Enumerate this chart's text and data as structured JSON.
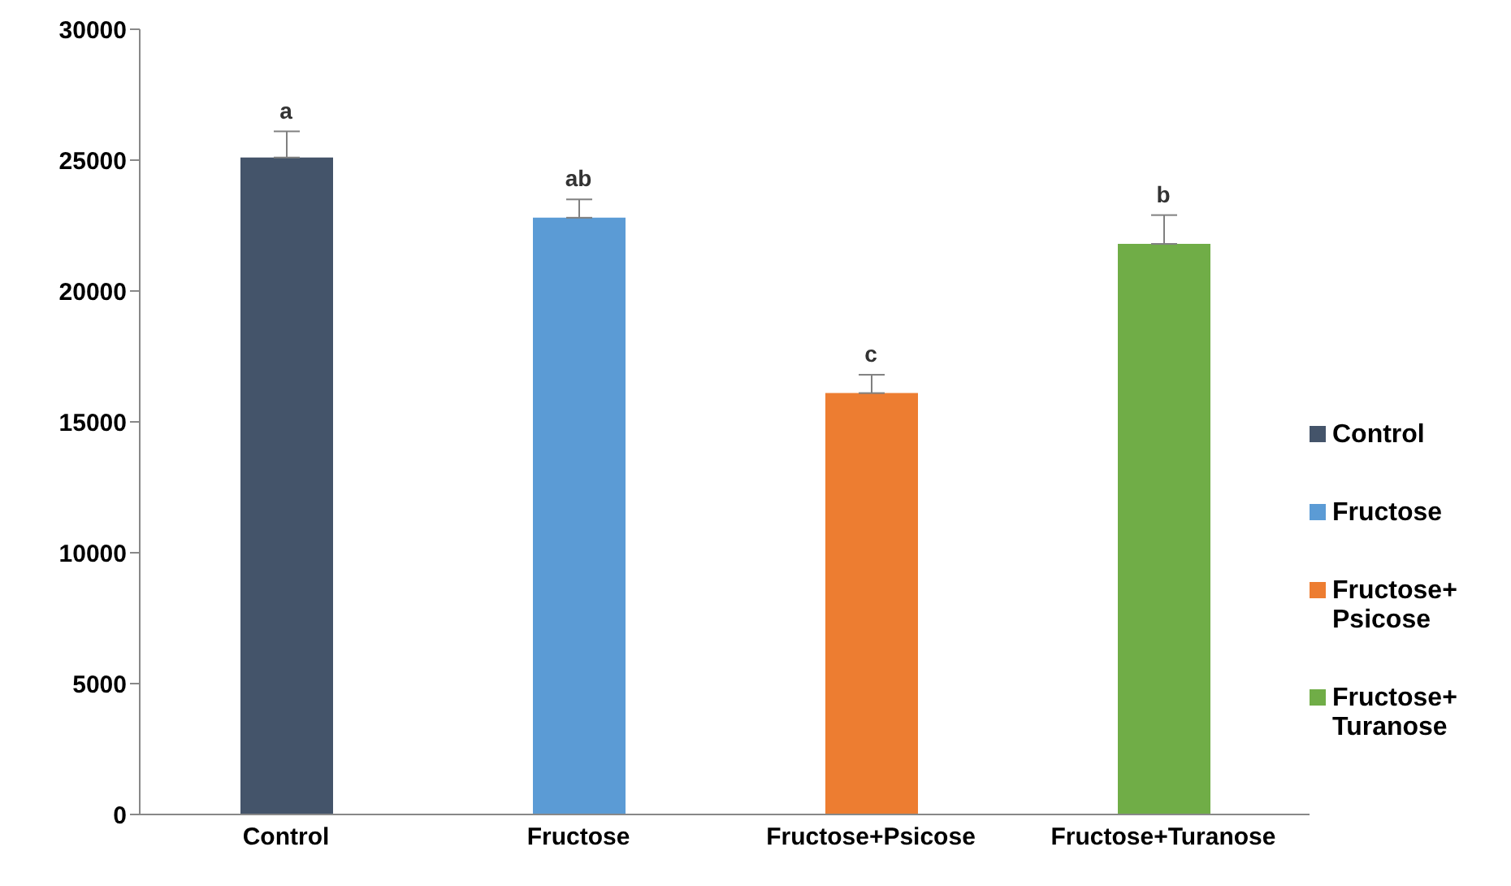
{
  "chart_data": {
    "type": "bar",
    "categories": [
      "Control",
      "Fructose",
      "Fructose+Psicose",
      "Fructose+Turanose"
    ],
    "stacked": true,
    "series": [
      {
        "name": "Control",
        "color": "#44546a",
        "values": [
          25100,
          null,
          null,
          null
        ],
        "errors": [
          [
            25100,
            26100
          ],
          null,
          null,
          null
        ]
      },
      {
        "name": "Fructose",
        "color": "#5b9bd5",
        "values": [
          null,
          22800,
          null,
          null
        ],
        "errors": [
          null,
          [
            22800,
            23500
          ],
          null,
          null
        ]
      },
      {
        "name": "Fructose+Psicose",
        "color": "#ed7d31",
        "values": [
          null,
          null,
          16100,
          null
        ],
        "errors": [
          null,
          null,
          [
            16100,
            16800
          ],
          null
        ]
      },
      {
        "name": "Fructose+Turanose",
        "color": "#70ad47",
        "values": [
          null,
          null,
          null,
          21800
        ],
        "errors": [
          null,
          null,
          null,
          [
            21800,
            22900
          ]
        ]
      }
    ],
    "ylim": [
      0,
      30000
    ],
    "yticks": [
      0,
      5000,
      10000,
      15000,
      20000,
      25000,
      30000
    ],
    "legend": "right",
    "annotations": [
      {
        "text": "a",
        "x": "Control",
        "y": 26100
      },
      {
        "text": "ab",
        "x": "Fructose",
        "y": 23500
      },
      {
        "text": "c",
        "x": "Fructose+Psicose",
        "y": 16800
      },
      {
        "text": "b",
        "x": "Fructose+Turanose",
        "y": 22900
      }
    ]
  }
}
